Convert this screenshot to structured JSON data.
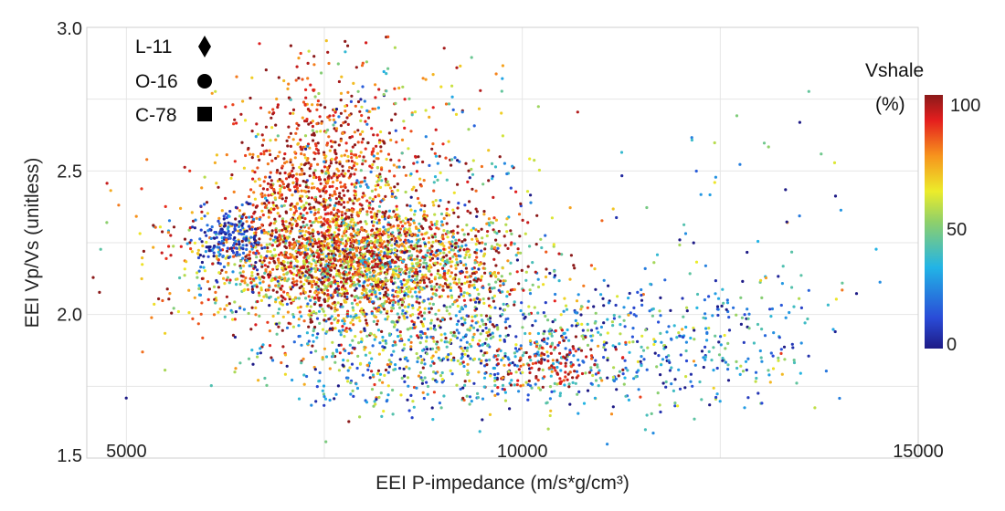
{
  "chart_data": {
    "type": "scatter",
    "title": "",
    "xlabel": "EEI P-impedance (m/s*g/cm³)",
    "ylabel": "EEI Vp/Vs (unitless)",
    "xlim": [
      4500,
      15000
    ],
    "ylim": [
      1.5,
      3.0
    ],
    "x_ticks": [
      "5000",
      "10000",
      "15000"
    ],
    "y_ticks": [
      "1.5",
      "2.0",
      "2.5",
      "3.0"
    ],
    "grid": true,
    "legend_placement": "top-left",
    "wells": [
      {
        "label": "L-11",
        "marker": "diamond"
      },
      {
        "label": "O-16",
        "marker": "circle"
      },
      {
        "label": "C-78",
        "marker": "square"
      }
    ],
    "colorbar": {
      "title_line1": "Vshale",
      "title_line2": "(%)",
      "ticks": [
        "100",
        "50",
        "0"
      ],
      "range": [
        0,
        100
      ],
      "colormap": "jet"
    },
    "clusters": [
      {
        "x_mean": 8000,
        "x_sd": 1000,
        "y_mean": 2.18,
        "y_sd": 0.11,
        "z_mean": 70,
        "z_sd": 28,
        "n": 2600
      },
      {
        "x_mean": 7400,
        "x_sd": 520,
        "y_mean": 2.45,
        "y_sd": 0.2,
        "z_mean": 88,
        "z_sd": 12,
        "n": 900
      },
      {
        "x_mean": 6300,
        "x_sd": 220,
        "y_mean": 2.27,
        "y_sd": 0.05,
        "z_mean": 10,
        "z_sd": 10,
        "n": 170
      },
      {
        "x_mean": 10800,
        "x_sd": 1500,
        "y_mean": 1.9,
        "y_sd": 0.12,
        "z_mean": 28,
        "z_sd": 22,
        "n": 700
      },
      {
        "x_mean": 8600,
        "x_sd": 1100,
        "y_mean": 1.85,
        "y_sd": 0.09,
        "z_mean": 45,
        "z_sd": 30,
        "n": 450
      },
      {
        "x_mean": 10400,
        "x_sd": 400,
        "y_mean": 1.83,
        "y_sd": 0.05,
        "z_mean": 92,
        "z_sd": 8,
        "n": 110
      },
      {
        "x_mean": 8500,
        "x_sd": 900,
        "y_mean": 2.55,
        "y_sd": 0.2,
        "z_mean": 55,
        "z_sd": 30,
        "n": 250
      },
      {
        "x_mean": 12700,
        "x_sd": 1100,
        "y_mean": 2.25,
        "y_sd": 0.3,
        "z_mean": 30,
        "z_sd": 25,
        "n": 70
      },
      {
        "x_mean": 5400,
        "x_sd": 500,
        "y_mean": 2.3,
        "y_sd": 0.1,
        "z_mean": 80,
        "z_sd": 20,
        "n": 25
      }
    ]
  }
}
